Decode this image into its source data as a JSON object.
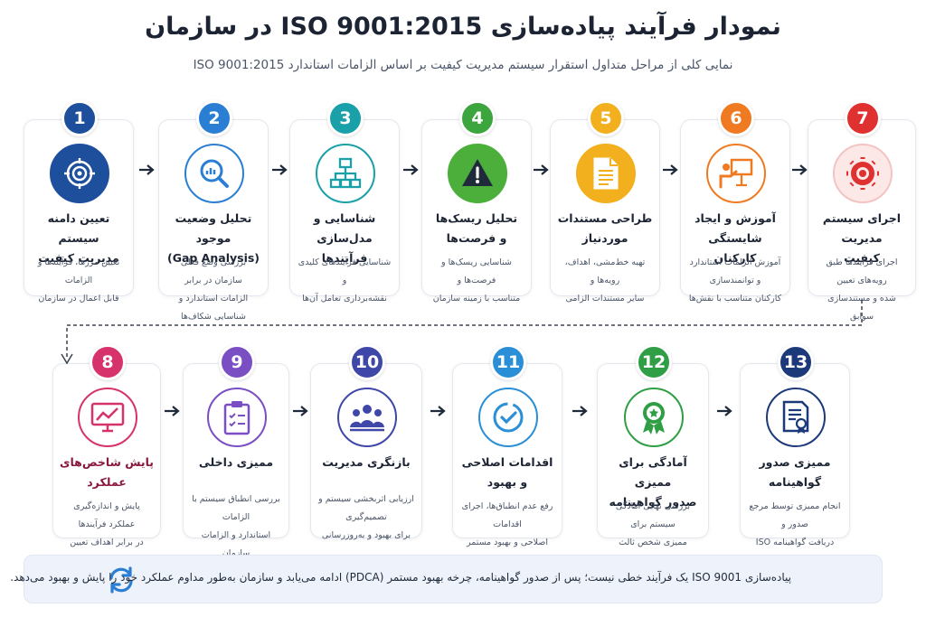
{
  "header": {
    "title": "نمودار فرآیند پیاده‌سازی ISO 9001:2015 در سازمان",
    "subtitle": "نمایی کلی از مراحل متداول استقرار سیستم مدیریت کیفیت بر اساس الزامات استاندارد ISO 9001:2015"
  },
  "steps": [
    {
      "number": "1",
      "title_line1": "تعیین دامنه سیستم",
      "title_line2": "مدیریت کیفیت",
      "desc_line1": "تعیین مرزها، فرآیندها و الزامات",
      "desc_line2": "قابل اعمال در سازمان",
      "color": "#1d4f9c",
      "icon": "target-icon"
    },
    {
      "number": "2",
      "title_line1": "تحلیل وضعیت موجود",
      "title_line2": "(Gap Analysis)",
      "desc_line1": "بررسی وضع فعلی سازمان در برابر",
      "desc_line2": "الزامات استاندارد و شناسایی شکاف‌ها",
      "color": "#2a7fd4",
      "icon": "magnifier-chart-icon"
    },
    {
      "number": "3",
      "title_line1": "شناسایی و مدل‌سازی",
      "title_line2": "فرآیندها",
      "desc_line1": "شناسایی فرآیندهای کلیدی و",
      "desc_line2": "نقشه‌برداری تعامل آن‌ها",
      "color": "#1aa0a8",
      "icon": "process-map-icon"
    },
    {
      "number": "4",
      "title_line1": "تحلیل ریسک‌ها",
      "title_line2": "و فرصت‌ها",
      "desc_line1": "شناسایی ریسک‌ها و فرصت‌ها و",
      "desc_line2": "متناسب با زمینه سازمان",
      "color": "#3da53d",
      "icon": "warning-icon"
    },
    {
      "number": "5",
      "title_line1": "طراحی مستندات",
      "title_line2": "موردنیاز",
      "desc_line1": "تهیه خط‌مشی، اهداف، رویه‌ها و",
      "desc_line2": "سایر مستندات الزامی",
      "color": "#f2b01e",
      "icon": "document-icon"
    },
    {
      "number": "6",
      "title_line1": "آموزش و ایجاد شایستگی",
      "title_line2": "کارکنان",
      "desc_line1": "آموزش الزامات استاندارد و توانمندسازی",
      "desc_line2": "کارکنان متناسب با نقش‌ها",
      "color": "#f07a22",
      "icon": "training-icon"
    },
    {
      "number": "7",
      "title_line1": "اجرای سیستم مدیریت",
      "title_line2": "کیفیت",
      "desc_line1": "اجرای فرآیندها طبق رویه‌های تعیین",
      "desc_line2": "شده و مستندسازی سوابق",
      "color": "#e03131",
      "icon": "gear-icon"
    },
    {
      "number": "8",
      "title_line1": "پایش شاخص‌های",
      "title_line2": "عملکرد",
      "desc_line1": "پایش و اندازه‌گیری عملکرد فرآیندها",
      "desc_line2": "در برابر اهداف تعیین شده",
      "color": "#d6336c",
      "icon": "monitor-chart-icon"
    },
    {
      "number": "9",
      "title_line1": "ممیزی داخلی",
      "title_line2": "",
      "desc_line1": "بررسی انطباق سیستم با الزامات",
      "desc_line2": "استاندارد و الزامات سازمان",
      "color": "#7b4fc4",
      "icon": "checklist-icon"
    },
    {
      "number": "10",
      "title_line1": "بازنگری مدیریت",
      "title_line2": "",
      "desc_line1": "ارزیابی اثربخشی سیستم و تصمیم‌گیری",
      "desc_line2": "برای بهبود و به‌روزرسانی",
      "color": "#3f47a8",
      "icon": "team-icon"
    },
    {
      "number": "11",
      "title_line1": "اقدامات اصلاحی",
      "title_line2": "و بهبود",
      "desc_line1": "رفع عدم انطباق‌ها، اجرای اقدامات",
      "desc_line2": "اصلاحی و بهبود مستمر",
      "color": "#2a8fd6",
      "icon": "check-circle-icon"
    },
    {
      "number": "12",
      "title_line1": "آمادگی برای ممیزی",
      "title_line2": "صدور گواهینامه",
      "desc_line1": "بررسی نهایی آمادگی سیستم برای",
      "desc_line2": "ممیزی شخص ثالث",
      "color": "#2f9e44",
      "icon": "award-icon"
    },
    {
      "number": "13",
      "title_line1": "ممیزی صدور",
      "title_line2": "گواهینامه",
      "desc_line1": "انجام ممیزی توسط مرجع صدور و",
      "desc_line2": "دریافت گواهینامه ISO 9001",
      "color": "#1c3a7a",
      "icon": "certificate-icon"
    }
  ],
  "footer": {
    "text": "پیاده‌سازی ISO 9001 یک فرآیند خطی نیست؛ پس از صدور گواهینامه، چرخه بهبود مستمر (PDCA) ادامه می‌یابد و سازمان به‌طور مداوم عملکرد خود را پایش و بهبود می‌دهد.",
    "icon": "refresh-cycle-icon",
    "icon_color": "#2a7fd4"
  }
}
